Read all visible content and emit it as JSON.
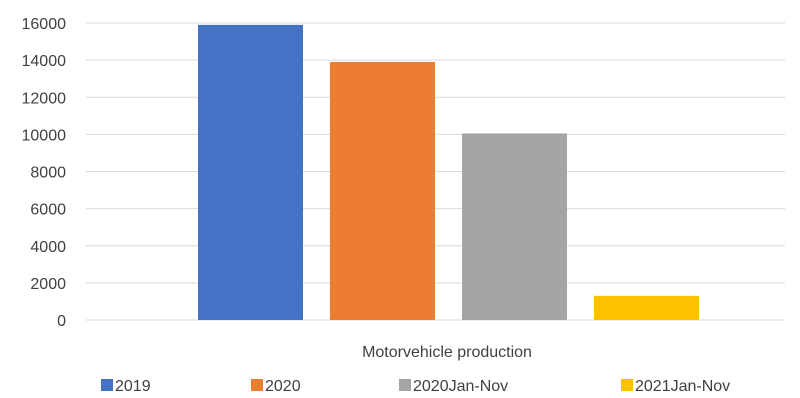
{
  "chart_data": {
    "type": "bar",
    "categories": [
      "Motorvehicle production"
    ],
    "series": [
      {
        "name": "2019",
        "values": [
          15900
        ],
        "color": "#4472C4"
      },
      {
        "name": "2020",
        "values": [
          13900
        ],
        "color": "#ED7D31"
      },
      {
        "name": "2020Jan-Nov",
        "values": [
          10050
        ],
        "color": "#A5A5A5"
      },
      {
        "name": "2021Jan-Nov",
        "values": [
          1300
        ],
        "color": "#FFC000"
      }
    ],
    "yticks": [
      "0",
      "2000",
      "4000",
      "6000",
      "8000",
      "10000",
      "12000",
      "14000",
      "16000"
    ],
    "ylim": [
      0,
      16000
    ],
    "grid": true,
    "legend_position": "bottom",
    "gridline_color": "#D9D9D9"
  }
}
